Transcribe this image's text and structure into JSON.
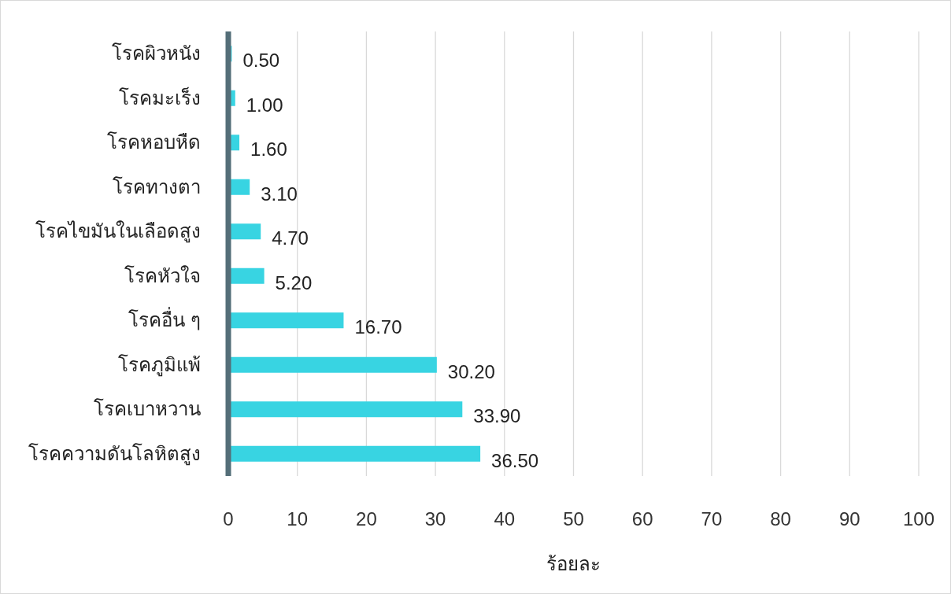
{
  "chart_data": {
    "type": "bar",
    "orientation": "horizontal",
    "categories": [
      "โรคผิวหนัง",
      "โรคมะเร็ง",
      "โรคหอบหืด",
      "โรคทางตา",
      "โรคไขมันในเลือดสูง",
      "โรคหัวใจ",
      "โรคอื่น ๆ",
      "โรคภูมิแพ้",
      "โรคเบาหวาน",
      "โรคความดันโลหิตสูง"
    ],
    "values": [
      0.5,
      1.0,
      1.6,
      3.1,
      4.7,
      5.2,
      16.7,
      30.2,
      33.9,
      36.5
    ],
    "value_labels": [
      "0.50",
      "1.00",
      "1.60",
      "3.10",
      "4.70",
      "5.20",
      "16.70",
      "30.20",
      "33.90",
      "36.50"
    ],
    "color": "#38d4e2",
    "xlim": [
      0,
      100
    ],
    "xticks": [
      0,
      10,
      20,
      30,
      40,
      50,
      60,
      70,
      80,
      90,
      100
    ],
    "xlabel": "ร้อยละ",
    "grid": "x"
  }
}
